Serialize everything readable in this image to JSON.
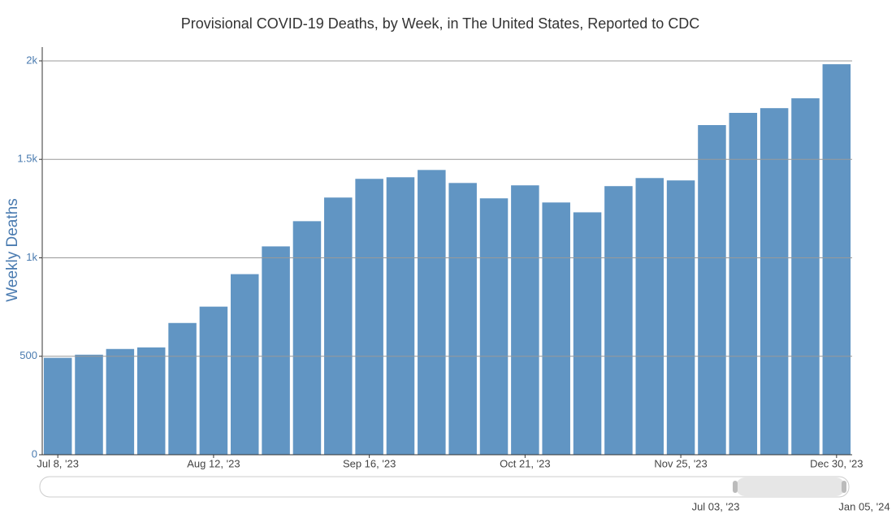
{
  "chart_data": {
    "type": "bar",
    "title": "Provisional COVID-19 Deaths, by Week, in The United States, Reported to CDC",
    "y_label": "Weekly Deaths",
    "categories": [
      "Jul 8, '23",
      null,
      null,
      null,
      null,
      "Aug 12, '23",
      null,
      null,
      null,
      null,
      "Sep 16, '23",
      null,
      null,
      null,
      null,
      "Oct 21, '23",
      null,
      null,
      null,
      null,
      "Nov 25, '23",
      null,
      null,
      null,
      null,
      "Dec 30, '23"
    ],
    "values": [
      492,
      508,
      537,
      545,
      669,
      752,
      917,
      1058,
      1186,
      1306,
      1401,
      1409,
      1446,
      1380,
      1302,
      1368,
      1281,
      1231,
      1364,
      1405,
      1393,
      1674,
      1736,
      1760,
      1810,
      1983
    ],
    "color": "#6195c3",
    "ylim": [
      0,
      2070
    ],
    "yticks": [
      0,
      500,
      {
        "value": 1000,
        "label": "1k"
      },
      {
        "value": 1500,
        "label": "1.5k"
      },
      {
        "value": 2000,
        "label": "2k"
      }
    ],
    "grid": true,
    "range_slider_labels": [
      "Jul 03, '23",
      "Jan 05, '24"
    ]
  }
}
